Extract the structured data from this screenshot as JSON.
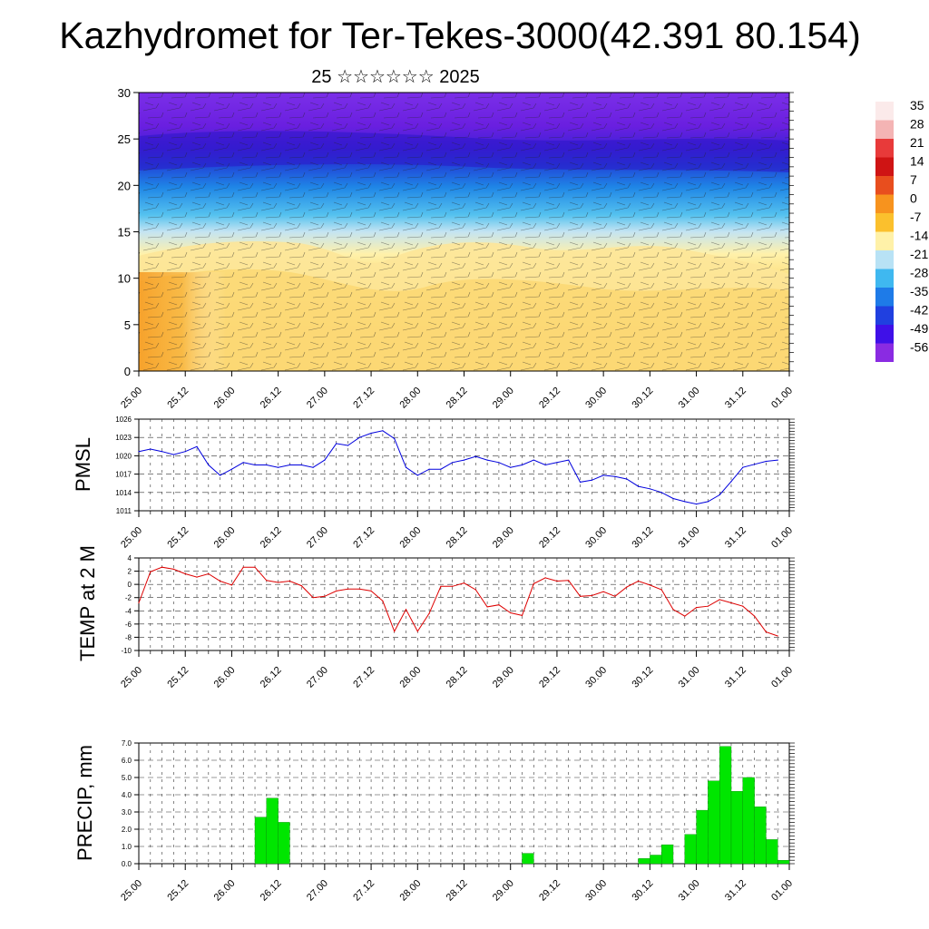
{
  "title": "Kazhydromet for Ter-Tekes-3000(42.391 80.154)",
  "subtitle": "25 ☆☆☆☆☆☆ 2025",
  "time_labels": [
    "25.00",
    "25.12",
    "26.00",
    "26.12",
    "27.00",
    "27.12",
    "28.00",
    "28.12",
    "29.00",
    "29.12",
    "30.00",
    "30.12",
    "31.00",
    "31.12",
    "01.00"
  ],
  "colors": {
    "pmsl_line": "#0000dd",
    "temp_line": "#dd0000",
    "precip_bar": "#00e600",
    "grid": "#333333"
  },
  "chart_data": [
    {
      "type": "heatmap",
      "name": "cross-section",
      "ylim": [
        0,
        30
      ],
      "yticks": [
        0,
        5,
        10,
        15,
        20,
        25,
        30
      ],
      "xlim": [
        0,
        168
      ],
      "colorbar": {
        "labels": [
          "35",
          "28",
          "21",
          "14",
          "7",
          "0",
          "-7",
          "-14",
          "-21",
          "-28",
          "-35",
          "-42",
          "-49",
          "-56"
        ],
        "colors": [
          "#fbeaea",
          "#f4b4b4",
          "#e83a3a",
          "#cf1414",
          "#e84e1e",
          "#f7931e",
          "#fbc02d",
          "#fff1a8",
          "#b8e2f5",
          "#3fb8f0",
          "#1e7be8",
          "#2040e0",
          "#3f10e8",
          "#8a2be2"
        ]
      }
    },
    {
      "type": "line",
      "ylabel": "PMSL",
      "ylim": [
        1011,
        1026
      ],
      "yticks": [
        1011,
        1014,
        1017,
        1020,
        1023,
        1026
      ],
      "xlim": [
        0,
        168
      ],
      "x": [
        0,
        3,
        6,
        9,
        12,
        15,
        18,
        21,
        24,
        27,
        30,
        33,
        36,
        39,
        42,
        45,
        48,
        51,
        54,
        57,
        60,
        63,
        66,
        69,
        72,
        75,
        78,
        81,
        84,
        87,
        90,
        93,
        96,
        99,
        102,
        105,
        108,
        111,
        114,
        117,
        120,
        123,
        126,
        129,
        132,
        135,
        138,
        141,
        144,
        147,
        150,
        153,
        156,
        159,
        162,
        165
      ],
      "values": [
        1020.7,
        1021.1,
        1020.7,
        1020.2,
        1020.7,
        1021.5,
        1018.5,
        1016.8,
        1017.8,
        1018.9,
        1018.5,
        1018.5,
        1018.1,
        1018.5,
        1018.5,
        1018.1,
        1019.3,
        1022.0,
        1021.7,
        1023.0,
        1023.7,
        1024.1,
        1022.8,
        1018.1,
        1016.8,
        1017.8,
        1017.8,
        1018.9,
        1019.3,
        1019.9,
        1019.3,
        1018.9,
        1018.1,
        1018.5,
        1019.3,
        1018.5,
        1018.9,
        1019.3,
        1015.7,
        1016.0,
        1016.8,
        1016.6,
        1016.2,
        1015.0,
        1014.6,
        1014.0,
        1013.0,
        1012.5,
        1012.1,
        1012.5,
        1013.6,
        1015.8,
        1018.1,
        1018.6,
        1019.1,
        1019.3
      ]
    },
    {
      "type": "line",
      "ylabel": "TEMP at 2 M",
      "ylim": [
        -10,
        4
      ],
      "yticks": [
        -10,
        -8,
        -6,
        -4,
        -2,
        0,
        2,
        4
      ],
      "xlim": [
        0,
        168
      ],
      "x": [
        0,
        3,
        6,
        9,
        12,
        15,
        18,
        21,
        24,
        27,
        30,
        33,
        36,
        39,
        42,
        45,
        48,
        51,
        54,
        57,
        60,
        63,
        66,
        69,
        72,
        75,
        78,
        81,
        84,
        87,
        90,
        93,
        96,
        99,
        102,
        105,
        108,
        111,
        114,
        117,
        120,
        123,
        126,
        129,
        132,
        135,
        138,
        141,
        144,
        147,
        150,
        153,
        156,
        159,
        162,
        165
      ],
      "values": [
        -2.8,
        1.9,
        2.6,
        2.3,
        1.6,
        1.1,
        1.6,
        0.5,
        -0.1,
        2.6,
        2.6,
        0.6,
        0.3,
        0.5,
        -0.2,
        -2.0,
        -1.8,
        -1.0,
        -0.7,
        -0.7,
        -1.0,
        -2.5,
        -7.1,
        -3.8,
        -7.1,
        -4.4,
        -0.3,
        -0.3,
        0.2,
        -0.8,
        -3.4,
        -3.1,
        -4.3,
        -4.7,
        0.1,
        1.0,
        0.5,
        0.6,
        -1.8,
        -1.7,
        -1.1,
        -1.8,
        -0.4,
        0.5,
        -0.1,
        -0.8,
        -3.8,
        -4.8,
        -3.5,
        -3.3,
        -2.3,
        -2.8,
        -3.3,
        -4.8,
        -7.2,
        -7.8
      ]
    },
    {
      "type": "bar",
      "ylabel": "PRECIP, mm",
      "ylim": [
        0,
        7
      ],
      "yticks": [
        "0.0",
        "1.0",
        "2.0",
        "3.0",
        "4.0",
        "5.0",
        "6.0",
        "7.0"
      ],
      "xlim": [
        0,
        168
      ],
      "bar_width": 3,
      "x": [
        31.5,
        34.5,
        37.5,
        100.5,
        130.5,
        133.5,
        136.5,
        142.5,
        145.5,
        148.5,
        151.5,
        154.5,
        157.5,
        160.5,
        163.5,
        166.5
      ],
      "values": [
        2.7,
        3.8,
        2.4,
        0.6,
        0.3,
        0.5,
        1.1,
        1.7,
        3.1,
        4.8,
        6.8,
        4.2,
        5.0,
        3.3,
        1.4,
        0.2
      ]
    }
  ]
}
